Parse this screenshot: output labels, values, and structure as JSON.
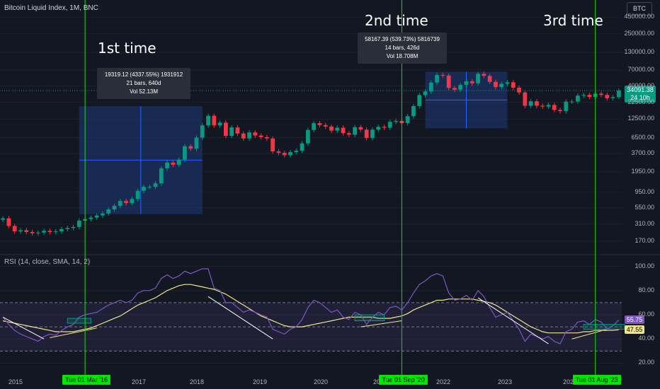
{
  "header": {
    "title": "Bitcoin Liquid Index, 1M, BNC",
    "currency_button": "BTC"
  },
  "annotations": {
    "first": "1st time",
    "second": "2nd time",
    "third": "3rd time"
  },
  "tooltips": {
    "first": {
      "line1": "19319.12 (4337.55%) 1931912",
      "line2": "21 bars, 640d",
      "line3": "Vol 52.13M"
    },
    "second": {
      "line1": "58167.39 (539.73%) 5816739",
      "line2": "14 bars, 426d",
      "line3": "Vol 18.708M"
    }
  },
  "price_tag": {
    "price": "34091.38",
    "countdown": "24 10h"
  },
  "rsi": {
    "label": "RSI (14, close, SMA, 14, 2)",
    "value": "55.75",
    "sma_value": "47.55"
  },
  "date_markers": [
    "Tue 01 Mar '16",
    "Tue 01 Sep '20",
    "Tue 01 Aug '23"
  ],
  "colors": {
    "up": "#089981",
    "down": "#f23645",
    "marker_line": "#00e600",
    "rsi_line": "#7e57c2",
    "sma_line": "#f0e68c",
    "measure_box": "#1e3a78"
  },
  "chart_data": [
    {
      "type": "candlestick",
      "title": "Bitcoin Liquid Index, 1M, BNC",
      "x_ticks": [
        "2015",
        "2017",
        "2018",
        "2019",
        "2020",
        "2021",
        "2022",
        "2023",
        "2024"
      ],
      "y_scale": "log",
      "y_ticks": [
        "450000.00",
        "250000.00",
        "130000.00",
        "70000.00",
        "40000.00",
        "22500.00",
        "12500.00",
        "6500.00",
        "3700.00",
        "1950.00",
        "950.00",
        "550.00",
        "310.00",
        "170.00"
      ],
      "ylim": [
        120,
        500000
      ],
      "series": [
        {
          "name": "Bitcoin Liquid Index",
          "close": [
            380,
            290,
            240,
            250,
            235,
            225,
            230,
            245,
            235,
            240,
            260,
            270,
            280,
            350,
            370,
            390,
            420,
            450,
            520,
            590,
            700,
            650,
            750,
            1000,
            1150,
            1150,
            1300,
            2200,
            2700,
            2500,
            3000,
            4800,
            4400,
            6500,
            10000,
            14000,
            10000,
            11000,
            6900,
            9300,
            7500,
            6300,
            7800,
            7000,
            6600,
            6300,
            4000,
            3800,
            3500,
            3900,
            4100,
            5300,
            8500,
            10800,
            10100,
            9600,
            8300,
            9200,
            7600,
            7200,
            9400,
            8600,
            6400,
            8600,
            9500,
            9200,
            11300,
            11700,
            10800,
            13800,
            19700,
            29000,
            33000,
            45000,
            58800,
            57700,
            37300,
            35000,
            41500,
            47100,
            43800,
            61300,
            57000,
            46200,
            38500,
            43200,
            45500,
            37700,
            31800,
            19900,
            23300,
            20000,
            19400,
            20500,
            17200,
            16500,
            23100,
            23100,
            28500,
            29200,
            27200,
            30500,
            29200,
            26000,
            27000,
            34091
          ]
        }
      ],
      "lines": [
        {
          "name": "1st time marker",
          "date": "Tue 01 Mar '16"
        },
        {
          "name": "2nd time marker",
          "date": "Tue 01 Sep '20"
        },
        {
          "name": "3rd time marker",
          "date": "Tue 01 Aug '23"
        }
      ]
    },
    {
      "type": "line",
      "title": "RSI (14, close, SMA, 14, 2)",
      "y_ticks": [
        "100.00",
        "80.00",
        "60.00",
        "40.00",
        "20.00"
      ],
      "ylim": [
        15,
        105
      ],
      "bands": [
        30,
        50,
        70
      ],
      "series": [
        {
          "name": "RSI",
          "values": [
            58,
            52,
            47,
            44,
            42,
            40,
            38,
            42,
            44,
            43,
            47,
            50,
            52,
            58,
            60,
            61,
            62,
            65,
            68,
            70,
            72,
            70,
            72,
            78,
            80,
            80,
            82,
            90,
            93,
            90,
            92,
            96,
            94,
            96,
            98,
            98,
            82,
            80,
            70,
            70,
            66,
            62,
            64,
            62,
            60,
            58,
            48,
            46,
            44,
            48,
            50,
            56,
            66,
            72,
            70,
            66,
            62,
            64,
            58,
            56,
            62,
            60,
            52,
            58,
            62,
            60,
            66,
            67,
            64,
            70,
            78,
            85,
            88,
            92,
            94,
            92,
            78,
            72,
            73,
            76,
            72,
            80,
            75,
            66,
            58,
            60,
            62,
            55,
            48,
            38,
            44,
            42,
            40,
            42,
            38,
            36,
            46,
            48,
            54,
            55,
            52,
            56,
            54,
            48,
            51,
            55.75
          ]
        },
        {
          "name": "SMA",
          "values": [
            55,
            54,
            53,
            52,
            51,
            50,
            49,
            48,
            47,
            46,
            46,
            46,
            46,
            47,
            48,
            49,
            51,
            53,
            55,
            57,
            59,
            62,
            65,
            68,
            70,
            72,
            74,
            77,
            80,
            82,
            84,
            85,
            85,
            84,
            83,
            82,
            81,
            79,
            77,
            74,
            71,
            68,
            65,
            62,
            59,
            57,
            55,
            53,
            51,
            50,
            50,
            50,
            51,
            52,
            53,
            54,
            55,
            56,
            57,
            58,
            58,
            58,
            58,
            58,
            57,
            57,
            57,
            58,
            59,
            61,
            64,
            66,
            68,
            70,
            72,
            72,
            73,
            73,
            73,
            73,
            73,
            72,
            71,
            70,
            68,
            65,
            62,
            59,
            56,
            53,
            50,
            48,
            46,
            45,
            45,
            45,
            45,
            45,
            45,
            46,
            46,
            47,
            47,
            47,
            47,
            47.55
          ]
        }
      ]
    }
  ]
}
